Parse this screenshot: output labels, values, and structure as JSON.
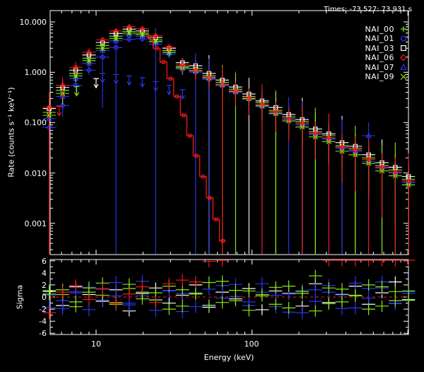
{
  "header": {
    "times_label": "Times: -73.527: 73.931 s"
  },
  "legend": {
    "items": [
      {
        "label": "NAI_00",
        "marker": "plus",
        "color": "#8CE817"
      },
      {
        "label": "NAI_01",
        "marker": "circle",
        "color": "#2A35F0"
      },
      {
        "label": "NAI_03",
        "marker": "square",
        "color": "#FFFFFF"
      },
      {
        "label": "NAI_06",
        "marker": "diamond",
        "color": "#F21818"
      },
      {
        "label": "NAI_07",
        "marker": "triangle",
        "color": "#2A35F0"
      },
      {
        "label": "NAI_09",
        "marker": "x",
        "color": "#8CE817"
      }
    ]
  },
  "axes": {
    "xlabel": "Energy (keV)",
    "xticks": [
      "10",
      "100"
    ],
    "top_panel": {
      "ylabel": "Rate (counts s⁻¹ keV⁻¹)",
      "yticks": [
        "10.000",
        "1.000",
        "0.100",
        "0.010",
        "0.001"
      ]
    },
    "bottom_panel": {
      "ylabel": "Sigma",
      "yticks": [
        "6",
        "4",
        "2",
        "0",
        "-2",
        "-4",
        "-6"
      ]
    }
  },
  "chart_data": {
    "type": "scatter",
    "title": "Times: -73.527: 73.931 s",
    "xlabel": "Energy (keV)",
    "ylabel_top": "Rate (counts s⁻¹ keV⁻¹)",
    "ylabel_bottom": "Sigma",
    "x_scale": "log",
    "y_scale_top": "log",
    "xlim": [
      5.07,
      1000
    ],
    "ylim_top": [
      0.00024,
      16.8
    ],
    "ylim_bottom": [
      -6.2,
      6.2
    ],
    "grid": false,
    "legend_position": "top-right-inside",
    "background": "#000000",
    "frame_color": "#FFFFFF",
    "energies": [
      5.0,
      6.1,
      7.4,
      9.0,
      11.0,
      13.4,
      16.3,
      19.8,
      24.1,
      29.4,
      35.8,
      43.5,
      53.0,
      64.5,
      78.5,
      95.6,
      116,
      142,
      172,
      210,
      255,
      311,
      378,
      460,
      560,
      682,
      830,
      1010
    ],
    "series": [
      {
        "name": "NAI_00",
        "color": "#8CE817",
        "marker": "plus",
        "sigma_err": 1.0,
        "rates": [
          0.16,
          0.44,
          0.95,
          1.9,
          3.4,
          5.2,
          6.5,
          6.0,
          4.4,
          2.7,
          1.3,
          1.2,
          0.85,
          0.63,
          0.46,
          0.33,
          0.25,
          0.175,
          0.13,
          0.105,
          0.066,
          0.055,
          0.035,
          0.031,
          0.02,
          0.014,
          0.0115,
          0.0075
        ],
        "err_frac": [
          0.5,
          0.3,
          0.2,
          0.15,
          0.12,
          0.1,
          0.1,
          0.1,
          0.12,
          0.15,
          0.2,
          0.2,
          0.25,
          1.2,
          0.3,
          0.35,
          0.4,
          1.5,
          0.45,
          0.5,
          2.0,
          0.6,
          0.65,
          1.8,
          0.7,
          0.75,
          2.5,
          0.9
        ],
        "sigma": [
          0.5,
          1.2,
          -0.8,
          1.5,
          0.3,
          -1.2,
          2.1,
          0.8,
          -0.5,
          1.8,
          -1.5,
          0.6,
          2.4,
          -0.9,
          1.1,
          -2.2,
          0.4,
          1.6,
          -1.8,
          0.9,
          3.5,
          -1.1,
          1.3,
          0.2,
          -2.0,
          1.7,
          -0.6,
          1.0
        ]
      },
      {
        "name": "NAI_01",
        "color": "#2A35F0",
        "marker": "circle",
        "sigma_err": 1.1,
        "rates": [
          0.08,
          0.22,
          0.55,
          1.1,
          2.0,
          3.1,
          4.5,
          4.6,
          3.6,
          2.3,
          1.15,
          1.0,
          0.72,
          0.54,
          0.4,
          0.29,
          0.21,
          0.155,
          0.115,
          0.09,
          0.058,
          0.047,
          0.031,
          0.027,
          0.017,
          0.0125,
          0.01,
          0.0065
        ],
        "err_frac": [
          0.6,
          0.4,
          0.25,
          0.18,
          0.9,
          1.3,
          0.12,
          0.12,
          1.1,
          0.18,
          0.25,
          1.4,
          0.3,
          0.3,
          1.6,
          0.4,
          0.45,
          0.5,
          1.8,
          0.55,
          0.6,
          2.2,
          0.7,
          0.75,
          1.5,
          0.85,
          0.9,
          2.8
        ],
        "sigma": [
          -1.8,
          -0.6,
          0.9,
          -2.1,
          1.4,
          0.2,
          -1.0,
          2.6,
          -0.4,
          1.1,
          -2.4,
          0.7,
          -1.3,
          1.9,
          0.1,
          -0.8,
          2.2,
          -1.6,
          0.5,
          -2.6,
          1.2,
          0.8,
          -1.9,
          2.3,
          -0.2,
          1.5,
          -1.1,
          0.6
        ]
      },
      {
        "name": "NAI_03",
        "color": "#FFFFFF",
        "marker": "square",
        "sigma_err": 0.9,
        "rates": [
          0.19,
          0.5,
          1.1,
          2.2,
          3.9,
          5.9,
          7.2,
          6.6,
          4.9,
          3.0,
          1.55,
          1.35,
          0.95,
          0.7,
          0.51,
          0.37,
          0.27,
          0.2,
          0.145,
          0.115,
          0.075,
          0.06,
          0.04,
          0.034,
          0.023,
          0.016,
          0.013,
          0.0085
        ],
        "err_frac": [
          0.5,
          0.35,
          0.22,
          0.16,
          0.13,
          0.11,
          0.1,
          0.11,
          0.13,
          0.16,
          0.22,
          0.28,
          1.3,
          0.32,
          0.38,
          1.1,
          0.45,
          0.5,
          0.55,
          1.7,
          0.6,
          0.68,
          2.4,
          0.75,
          0.8,
          1.9,
          0.85,
          0.95
        ],
        "sigma": [
          0.9,
          -1.4,
          1.7,
          0.4,
          -0.7,
          1.2,
          -2.3,
          0.6,
          1.5,
          -1.0,
          0.3,
          2.0,
          -1.7,
          0.8,
          -0.3,
          1.4,
          -2.1,
          1.0,
          0.6,
          -1.5,
          2.2,
          -0.9,
          0.4,
          1.8,
          -1.2,
          0.7,
          2.5,
          -0.5
        ]
      },
      {
        "name": "NAI_06",
        "color": "#F21818",
        "marker": "diamond",
        "sigma_err": 1.0,
        "rates": [
          0.2,
          0.55,
          1.25,
          2.5,
          4.4,
          6.6,
          8.0,
          7.3,
          5.3,
          3.1,
          1.4,
          1.1,
          0.8,
          0.58,
          0.43,
          0.31,
          0.23,
          0.165,
          0.12,
          0.098,
          0.062,
          0.05,
          0.033,
          0.029,
          0.0185,
          0.013,
          0.0105,
          0.007
        ],
        "err_frac": [
          1.0,
          0.45,
          0.28,
          0.2,
          0.15,
          0.12,
          0.11,
          0.12,
          0.15,
          0.2,
          0.3,
          0.35,
          0.4,
          1.2,
          0.5,
          0.55,
          1.5,
          0.6,
          0.65,
          1.3,
          0.7,
          2.0,
          0.8,
          0.85,
          1.6,
          0.9,
          0.95,
          2.2
        ],
        "sigma": [
          -2.6,
          0.8,
          1.9,
          -0.4,
          1.3,
          -1.1,
          0.5,
          1.7,
          -0.9,
          2.2,
          2.8,
          2.5,
          5.9,
          6.3,
          null,
          null,
          null,
          null,
          null,
          null,
          null,
          6.2,
          6.2,
          6.2,
          6.2,
          6.2,
          6.2,
          6.2
        ]
      },
      {
        "name": "NAI_07",
        "color": "#2A35F0",
        "marker": "triangle",
        "sigma_err": 1.05,
        "rates": [
          0.12,
          0.33,
          0.75,
          1.5,
          2.7,
          4.2,
          5.5,
          5.2,
          3.9,
          2.45,
          1.25,
          1.05,
          0.75,
          0.56,
          0.41,
          0.3,
          0.22,
          0.16,
          0.118,
          0.092,
          0.06,
          0.048,
          0.032,
          0.028,
          0.055,
          0.0128,
          0.0102,
          0.0066
        ],
        "err_frac": [
          0.7,
          0.45,
          0.3,
          0.2,
          0.16,
          0.13,
          0.12,
          0.13,
          0.16,
          0.2,
          0.28,
          0.33,
          1.5,
          0.4,
          0.45,
          0.5,
          1.2,
          0.55,
          0.6,
          1.9,
          0.65,
          0.7,
          2.6,
          0.8,
          0.85,
          1.4,
          0.9,
          2.0
        ],
        "sigma": [
          0.3,
          -1.9,
          0.7,
          1.6,
          -0.5,
          2.4,
          -1.3,
          0.2,
          -2.2,
          1.0,
          0.6,
          -1.6,
          1.3,
          -0.2,
          2.1,
          -1.4,
          0.8,
          0.3,
          -2.5,
          1.1,
          -0.7,
          1.9,
          0.5,
          -1.8,
          1.4,
          2.5,
          -1.0,
          0.9
        ]
      },
      {
        "name": "NAI_09",
        "color": "#8CE817",
        "marker": "x",
        "sigma_err": 0.95,
        "rates": [
          0.14,
          0.38,
          0.85,
          1.7,
          3.0,
          4.7,
          6.0,
          5.6,
          4.1,
          2.5,
          1.22,
          1.08,
          0.78,
          0.57,
          0.42,
          0.3,
          0.215,
          0.15,
          0.108,
          0.082,
          0.052,
          0.042,
          0.027,
          0.023,
          0.0155,
          0.011,
          0.0088,
          0.0058
        ],
        "err_frac": [
          0.6,
          0.4,
          0.25,
          0.17,
          0.14,
          0.11,
          0.1,
          0.11,
          0.14,
          0.17,
          0.24,
          0.3,
          0.35,
          0.4,
          1.3,
          0.45,
          0.5,
          1.6,
          0.55,
          0.6,
          2.1,
          0.65,
          0.75,
          1.5,
          0.8,
          2.3,
          0.9,
          1.0
        ],
        "sigma": [
          1.1,
          0.4,
          -1.6,
          0.8,
          2.3,
          -0.9,
          1.4,
          -0.3,
          0.7,
          -2.0,
          1.2,
          0.5,
          -1.4,
          2.6,
          -0.6,
          1.0,
          0.2,
          -1.2,
          1.8,
          0.6,
          -2.3,
          1.5,
          -0.8,
          0.3,
          2.0,
          -1.5,
          0.9,
          -0.4
        ]
      }
    ],
    "red_model_steps": {
      "name": "NAI_06_model",
      "color": "#F21818",
      "energies": [
        22,
        24.5,
        27,
        30,
        33,
        36.5,
        40,
        44,
        48.5,
        53.5,
        59,
        65
      ],
      "rates": [
        5.0,
        3.0,
        1.6,
        0.75,
        0.33,
        0.14,
        0.055,
        0.022,
        0.0085,
        0.0032,
        0.0012,
        0.00045
      ]
    },
    "upper_limits": [
      {
        "series": "NAI_06",
        "energy": 5.8,
        "rate": 0.21
      },
      {
        "series": "NAI_00",
        "energy": 7.5,
        "rate": 0.52
      },
      {
        "series": "NAI_03",
        "energy": 10.0,
        "rate": 0.75
      },
      {
        "series": "NAI_01",
        "energy": 11.0,
        "rate": 0.95
      },
      {
        "series": "NAI_01",
        "energy": 13.4,
        "rate": 0.9
      },
      {
        "series": "NAI_01",
        "energy": 16.3,
        "rate": 0.85
      },
      {
        "series": "NAI_01",
        "energy": 19.8,
        "rate": 0.78
      },
      {
        "series": "NAI_01",
        "energy": 24.1,
        "rate": 0.65
      },
      {
        "series": "NAI_01",
        "energy": 29.4,
        "rate": 0.55
      },
      {
        "series": "NAI_07",
        "energy": 35.8,
        "rate": 0.45
      }
    ],
    "zero_line": {
      "value": 0,
      "color": "#F21818",
      "style": "dashed"
    }
  }
}
